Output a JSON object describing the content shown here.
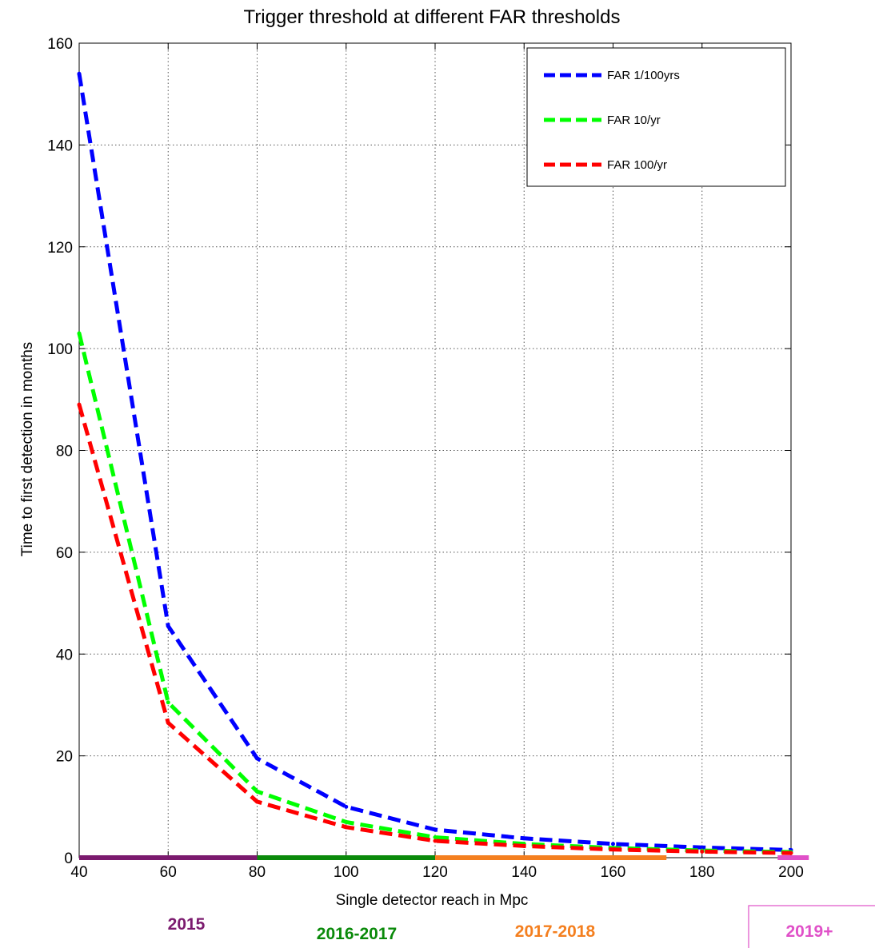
{
  "chart_data": {
    "type": "line",
    "title": "Trigger threshold at different FAR thresholds",
    "xlabel": "Single detector reach in Mpc",
    "ylabel": "Time to first detection in months",
    "xlim": [
      40,
      200
    ],
    "ylim": [
      0,
      160
    ],
    "xticks": [
      40,
      60,
      80,
      100,
      120,
      140,
      160,
      180,
      200
    ],
    "yticks": [
      0,
      20,
      40,
      60,
      80,
      100,
      120,
      140,
      160
    ],
    "grid": true,
    "legend_position": "top-right",
    "x": [
      40,
      60,
      80,
      100,
      120,
      140,
      160,
      180,
      200
    ],
    "series": [
      {
        "name": "FAR 1/100yrs",
        "color": "#0000ff",
        "values": [
          154,
          45.5,
          19.5,
          10,
          5.5,
          3.8,
          2.7,
          2.0,
          1.5
        ]
      },
      {
        "name": "FAR 10/yr",
        "color": "#00ff00",
        "values": [
          103,
          30.5,
          13,
          7,
          4,
          2.7,
          1.9,
          1.4,
          1.1
        ]
      },
      {
        "name": "FAR 100/yr",
        "color": "#ff0000",
        "values": [
          89,
          26.5,
          11,
          6,
          3.3,
          2.3,
          1.6,
          1.2,
          0.9
        ]
      }
    ],
    "eras": [
      {
        "label": "2015",
        "color": "#7b1a6e",
        "x_start": 40,
        "x_end": 80
      },
      {
        "label": "2016-2017",
        "color": "#0a8a0a",
        "x_start": 80,
        "x_end": 120
      },
      {
        "label": "2017-2018",
        "color": "#f47f1f",
        "x_start": 120,
        "x_end": 172
      },
      {
        "label": "2019+",
        "color": "#e050c8",
        "x_start": 197,
        "x_end": 204
      }
    ]
  }
}
